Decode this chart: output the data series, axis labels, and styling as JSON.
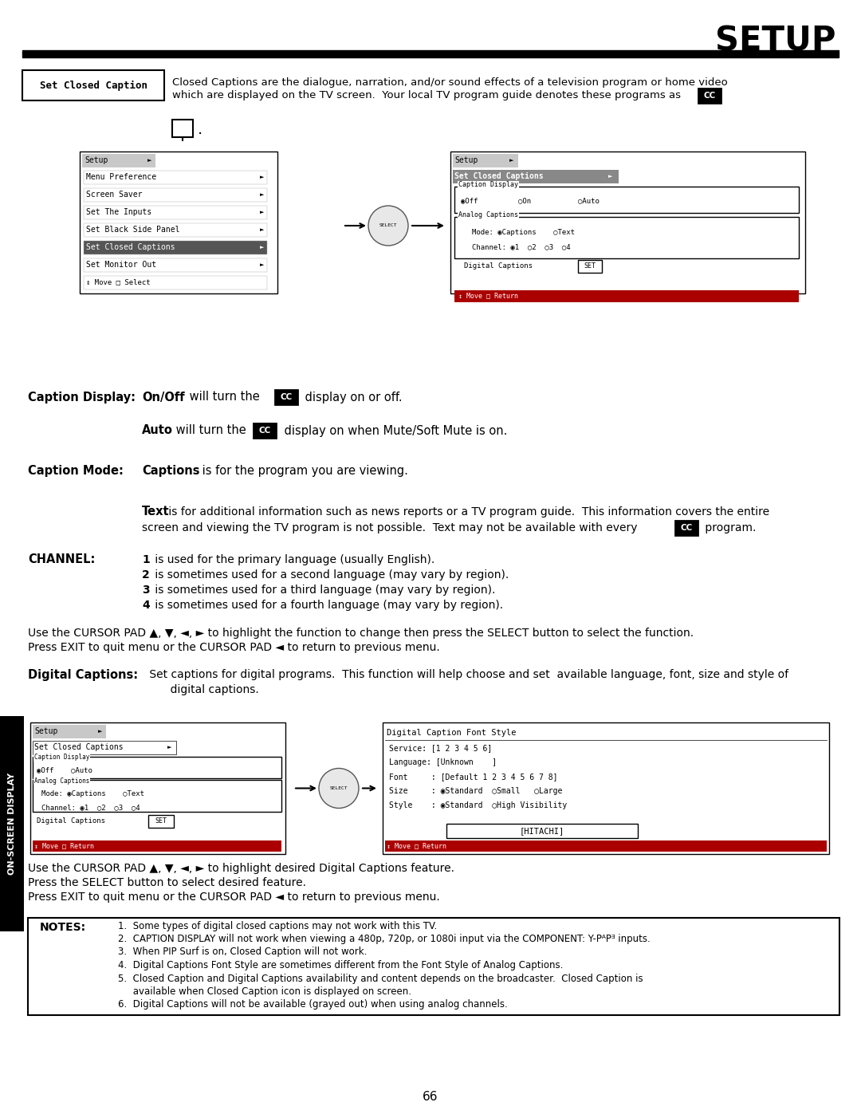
{
  "title": "SETUP",
  "page_number": "66",
  "background_color": "#ffffff",
  "section1_label": "Set Closed Caption",
  "section1_text_line1": "Closed Captions are the dialogue, narration, and/or sound effects of a television program or home video",
  "section1_text_line2": "which are displayed on the TV screen.  Your local TV program guide denotes these programs as       or",
  "cursor_text1": "Use the CURSOR PAD ▲, ▼, ◄, ► to highlight the function to change then press the SELECT button to select the function.",
  "cursor_text2": "Press EXIT to quit menu or the CURSOR PAD ◄ to return to previous menu.",
  "bottom_right_menu_title": "Digital Caption Font Style",
  "bottom_right_menu_items": [
    "Service: [1 2 3 4 5 6]",
    "Language: [Unknown    ]",
    "Font     : [Default 1 2 3 4 5 6 7 8]",
    "Size     : ◉Standard  ○Small   ○Large",
    "Style    : ◉Standard  ○High Visibility"
  ],
  "hitachi_label": "[HITACHI]",
  "cursor_text3": "Use the CURSOR PAD ▲, ▼, ◄, ► to highlight desired Digital Captions feature.",
  "cursor_text4": "Press the SELECT button to select desired feature.",
  "cursor_text5": "Press EXIT to quit menu or the CURSOR PAD ◄ to return to previous menu.",
  "notes": [
    "1.  Some types of digital closed captions may not work with this TV.",
    "2.  CAPTION DISPLAY will not work when viewing a 480p, 720p, or 1080i input via the COMPONENT: Y-PᴬPᴲ inputs.",
    "3.  When PIP Surf is on, Closed Caption will not work.",
    "4.  Digital Captions Font Style are sometimes different from the Font Style of Analog Captions.",
    "5.  Closed Caption and Digital Captions availability and content depends on the broadcaster.  Closed Caption is",
    "     available when Closed Caption icon is displayed on screen.",
    "6.  Digital Captions will not be available (grayed out) when using analog channels."
  ],
  "sidebar_text": "ON-SCREEN DISPLAY"
}
